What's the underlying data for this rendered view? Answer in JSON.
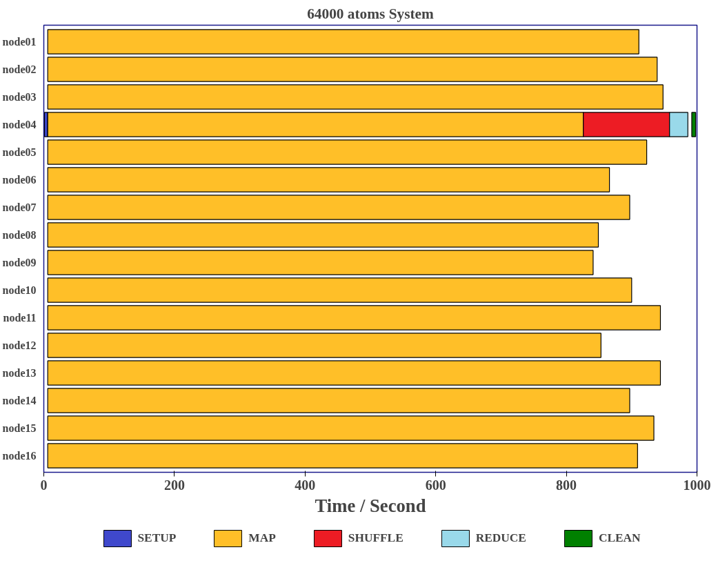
{
  "chart_data": {
    "type": "bar",
    "orientation": "horizontal",
    "title": "64000 atoms System",
    "xlabel": "Time / Second",
    "categories": [
      "node01",
      "node02",
      "node03",
      "node04",
      "node05",
      "node06",
      "node07",
      "node08",
      "node09",
      "node10",
      "node11",
      "node12",
      "node13",
      "node14",
      "node15",
      "node16"
    ],
    "series": [
      {
        "name": "SETUP",
        "color": "#3f48cc",
        "base": [
          null,
          null,
          null,
          1,
          null,
          null,
          null,
          null,
          null,
          null,
          null,
          null,
          null,
          null,
          null,
          null
        ],
        "values": [
          null,
          null,
          null,
          5,
          null,
          null,
          null,
          null,
          null,
          null,
          null,
          null,
          null,
          null,
          null,
          null
        ]
      },
      {
        "name": "MAP",
        "color": "#ffbf28",
        "base": [
          6,
          6,
          6,
          6,
          6,
          6,
          6,
          6,
          6,
          6,
          6,
          6,
          6,
          6,
          6,
          6
        ],
        "values": [
          905,
          933,
          942,
          820,
          917,
          860,
          891,
          843,
          835,
          894,
          938,
          847,
          938,
          891,
          928,
          903
        ]
      },
      {
        "name": "SHUFFLE",
        "color": "#ed1c24",
        "base": [
          null,
          null,
          null,
          826,
          null,
          null,
          null,
          null,
          null,
          null,
          null,
          null,
          null,
          null,
          null,
          null
        ],
        "values": [
          null,
          null,
          null,
          132,
          null,
          null,
          null,
          null,
          null,
          null,
          null,
          null,
          null,
          null,
          null,
          null
        ]
      },
      {
        "name": "REDUCE",
        "color": "#99d9ea",
        "base": [
          null,
          null,
          null,
          958,
          null,
          null,
          null,
          null,
          null,
          null,
          null,
          null,
          null,
          null,
          null,
          null
        ],
        "values": [
          null,
          null,
          null,
          28,
          null,
          null,
          null,
          null,
          null,
          null,
          null,
          null,
          null,
          null,
          null,
          null
        ]
      },
      {
        "name": "CLEAN",
        "color": "#008000",
        "base": [
          null,
          null,
          null,
          992,
          null,
          null,
          null,
          null,
          null,
          null,
          null,
          null,
          null,
          null,
          null,
          null
        ],
        "values": [
          null,
          null,
          null,
          6,
          null,
          null,
          null,
          null,
          null,
          null,
          null,
          null,
          null,
          null,
          null,
          null
        ]
      }
    ],
    "xlim": [
      0,
      1000
    ],
    "xticks": [
      0,
      200,
      400,
      600,
      800,
      1000
    ],
    "grid": false,
    "legend": "bottom"
  }
}
